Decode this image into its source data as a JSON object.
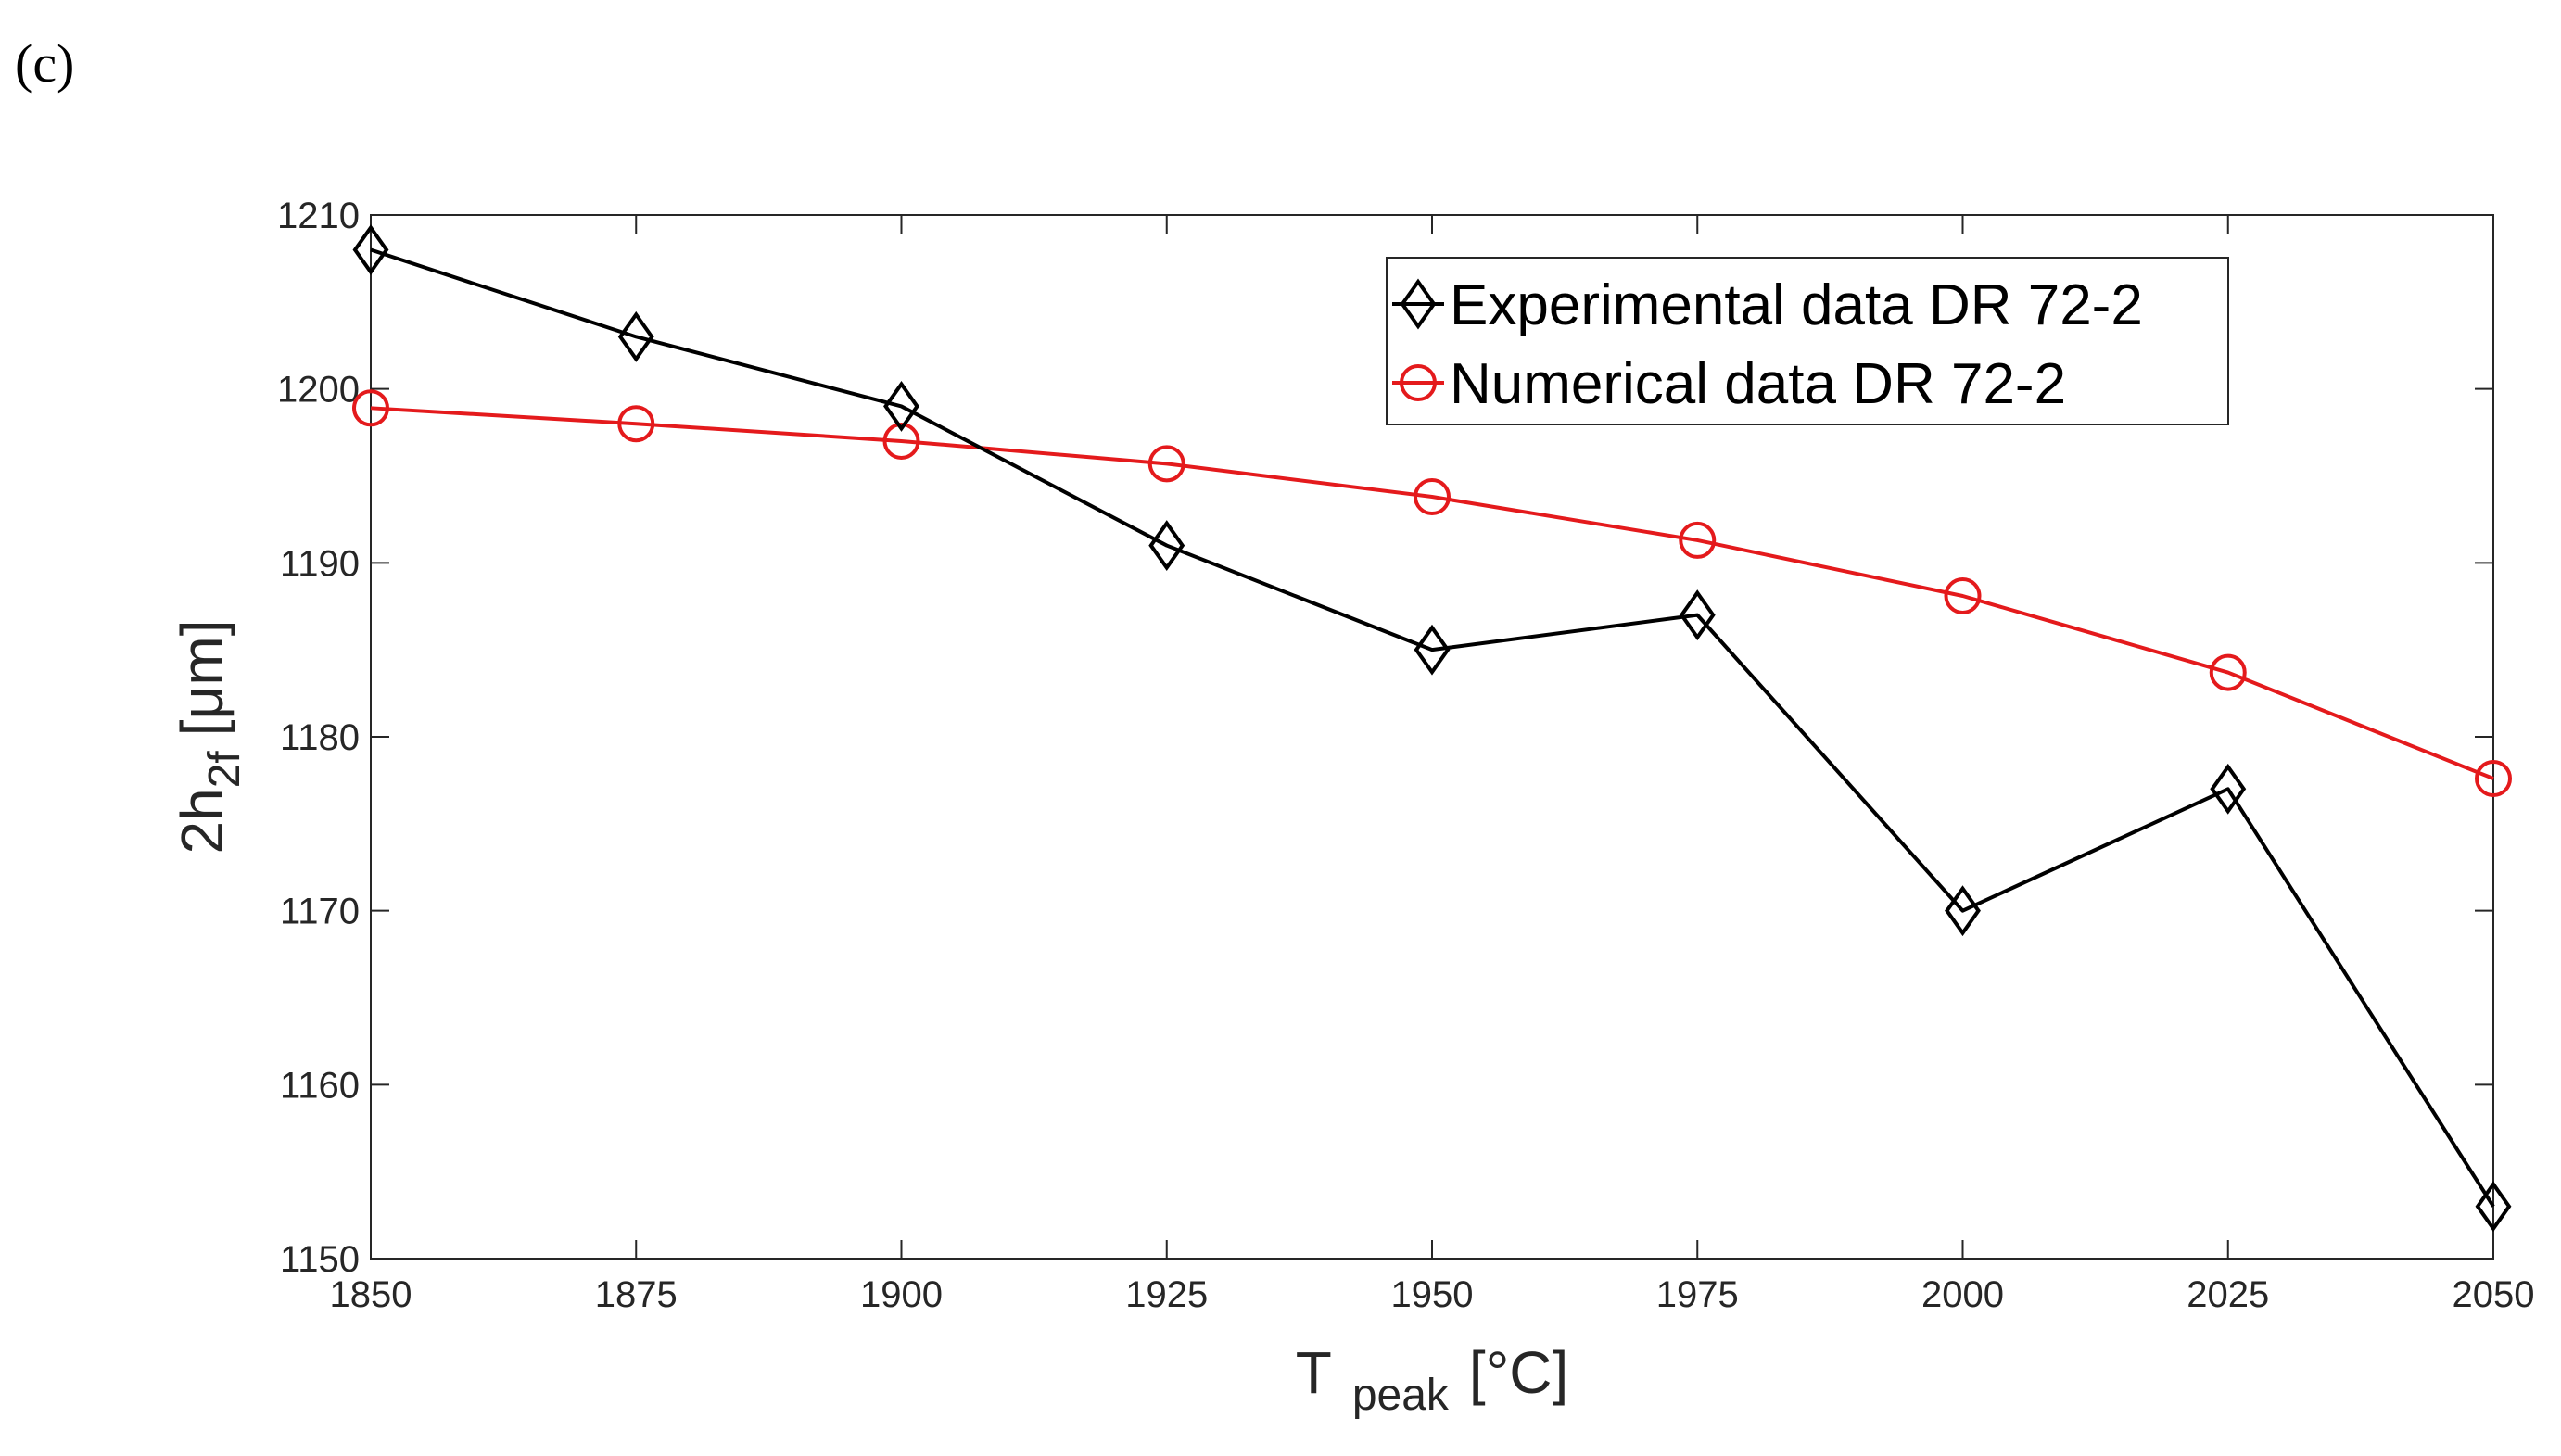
{
  "panel_label": "(c)",
  "chart_data": {
    "type": "line",
    "title": "",
    "xlabel_main": "T",
    "xlabel_sub": "peak",
    "xlabel_unit": "[°C]",
    "ylabel_main": "2h",
    "ylabel_sub": "2f",
    "ylabel_unit": "[μm]",
    "xlim": [
      1850,
      2050
    ],
    "ylim": [
      1150,
      1210
    ],
    "xticks": [
      1850,
      1875,
      1900,
      1925,
      1950,
      1975,
      2000,
      2025,
      2050
    ],
    "yticks": [
      1150,
      1160,
      1170,
      1180,
      1190,
      1200,
      1210
    ],
    "grid": false,
    "legend_position": "top-right",
    "x": [
      1850,
      1875,
      1900,
      1925,
      1950,
      1975,
      2000,
      2025,
      2050
    ],
    "series": [
      {
        "name": "Experimental data DR 72-2",
        "color": "#000000",
        "marker": "diamond",
        "values": [
          1208,
          1203,
          1199,
          1191,
          1185,
          1187,
          1170,
          1177,
          1153
        ]
      },
      {
        "name": "Numerical data DR 72-2",
        "color": "#e41a1c",
        "marker": "circle",
        "values": [
          1198.9,
          1198,
          1197,
          1195.7,
          1193.8,
          1191.3,
          1188.1,
          1183.7,
          1177.6
        ]
      }
    ]
  }
}
